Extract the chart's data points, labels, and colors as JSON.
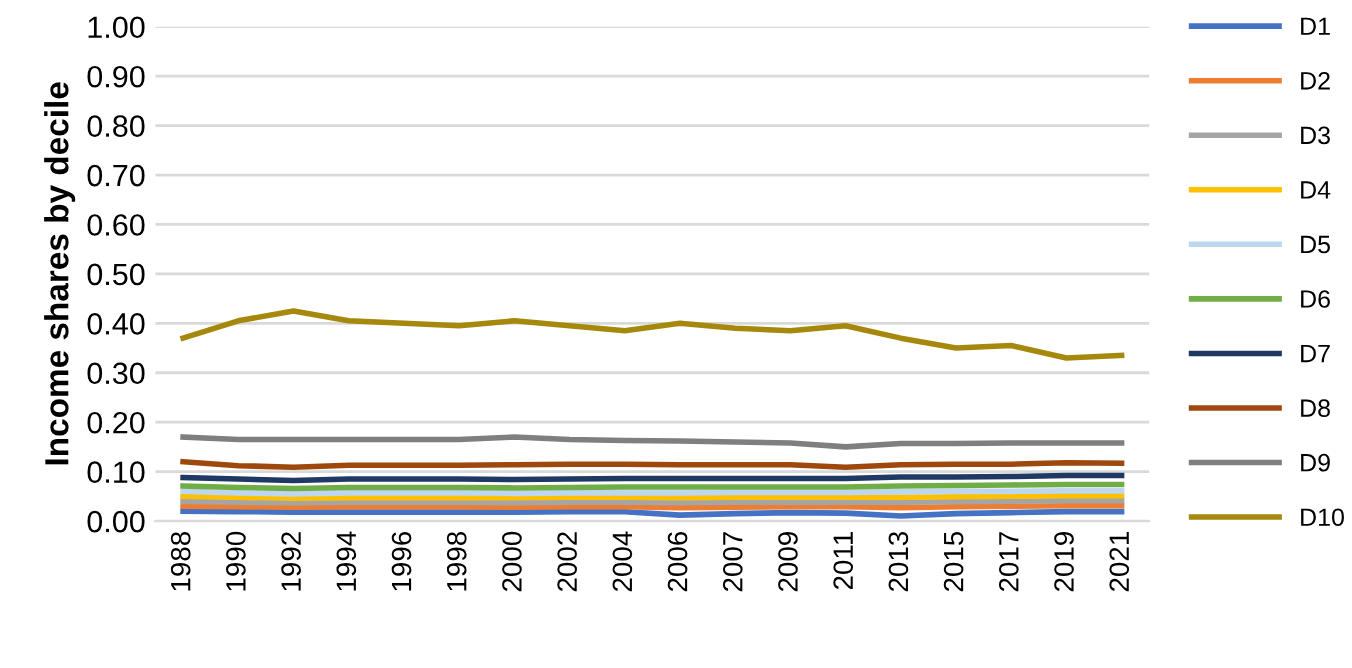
{
  "chart_data": {
    "type": "line",
    "ylabel": "Income shares by decile",
    "categories": [
      "1988",
      "1990",
      "1992",
      "1994",
      "1996",
      "1998",
      "2000",
      "2002",
      "2004",
      "2006",
      "2007",
      "2009",
      "2011",
      "2013",
      "2015",
      "2017",
      "2019",
      "2021"
    ],
    "ylim": [
      0,
      1
    ],
    "yticks": [
      {
        "value": 0,
        "label": "0.00"
      },
      {
        "value": 0.1,
        "label": "0.10"
      },
      {
        "value": 0.2,
        "label": "0.20"
      },
      {
        "value": 0.3,
        "label": "0.30"
      },
      {
        "value": 0.4,
        "label": "0.40"
      },
      {
        "value": 0.5,
        "label": "0.50"
      },
      {
        "value": 0.6,
        "label": "0.60"
      },
      {
        "value": 0.7,
        "label": "0.70"
      },
      {
        "value": 0.8,
        "label": "0.80"
      },
      {
        "value": 0.9,
        "label": "0.90"
      },
      {
        "value": 1,
        "label": "1.00"
      }
    ],
    "grid": "y",
    "legend": "right",
    "marker": "none",
    "series": [
      {
        "name": "D1",
        "color": "#4472c4",
        "values": [
          0.02,
          0.019,
          0.018,
          0.018,
          0.018,
          0.018,
          0.018,
          0.019,
          0.019,
          0.012,
          0.015,
          0.017,
          0.016,
          0.01,
          0.015,
          0.017,
          0.019,
          0.019
        ]
      },
      {
        "name": "D2",
        "color": "#ed7d31",
        "values": [
          0.03,
          0.029,
          0.028,
          0.029,
          0.029,
          0.029,
          0.028,
          0.029,
          0.029,
          0.027,
          0.028,
          0.029,
          0.029,
          0.027,
          0.029,
          0.03,
          0.031,
          0.031
        ]
      },
      {
        "name": "D3",
        "color": "#a5a5a5",
        "values": [
          0.04,
          0.038,
          0.037,
          0.038,
          0.038,
          0.038,
          0.037,
          0.038,
          0.038,
          0.037,
          0.038,
          0.038,
          0.038,
          0.038,
          0.039,
          0.04,
          0.041,
          0.041
        ]
      },
      {
        "name": "D4",
        "color": "#ffc000",
        "values": [
          0.05,
          0.048,
          0.046,
          0.047,
          0.047,
          0.047,
          0.047,
          0.048,
          0.048,
          0.047,
          0.048,
          0.048,
          0.048,
          0.048,
          0.049,
          0.05,
          0.051,
          0.051
        ]
      },
      {
        "name": "D5",
        "color": "#bdd7ee",
        "values": [
          0.06,
          0.057,
          0.055,
          0.057,
          0.057,
          0.057,
          0.056,
          0.057,
          0.057,
          0.057,
          0.058,
          0.058,
          0.058,
          0.059,
          0.06,
          0.06,
          0.061,
          0.061
        ]
      },
      {
        "name": "D6",
        "color": "#70ad47",
        "values": [
          0.071,
          0.068,
          0.066,
          0.068,
          0.068,
          0.068,
          0.067,
          0.068,
          0.069,
          0.069,
          0.069,
          0.069,
          0.069,
          0.071,
          0.072,
          0.073,
          0.074,
          0.074
        ]
      },
      {
        "name": "D7",
        "color": "#203864",
        "values": [
          0.088,
          0.085,
          0.082,
          0.085,
          0.085,
          0.085,
          0.084,
          0.085,
          0.086,
          0.086,
          0.086,
          0.086,
          0.086,
          0.089,
          0.089,
          0.09,
          0.092,
          0.092
        ]
      },
      {
        "name": "D8",
        "color": "#9e480e",
        "values": [
          0.12,
          0.112,
          0.109,
          0.113,
          0.113,
          0.113,
          0.114,
          0.115,
          0.115,
          0.114,
          0.114,
          0.114,
          0.109,
          0.114,
          0.115,
          0.115,
          0.118,
          0.117
        ]
      },
      {
        "name": "D9",
        "color": "#7f7f7f",
        "values": [
          0.17,
          0.165,
          0.165,
          0.165,
          0.165,
          0.165,
          0.17,
          0.165,
          0.163,
          0.162,
          0.16,
          0.158,
          0.15,
          0.157,
          0.157,
          0.158,
          0.158,
          0.158
        ]
      },
      {
        "name": "D10",
        "color": "#a5880c",
        "values": [
          0.37,
          0.405,
          0.425,
          0.405,
          0.4,
          0.395,
          0.405,
          0.395,
          0.385,
          0.4,
          0.39,
          0.385,
          0.395,
          0.37,
          0.35,
          0.355,
          0.33,
          0.335
        ]
      }
    ]
  }
}
